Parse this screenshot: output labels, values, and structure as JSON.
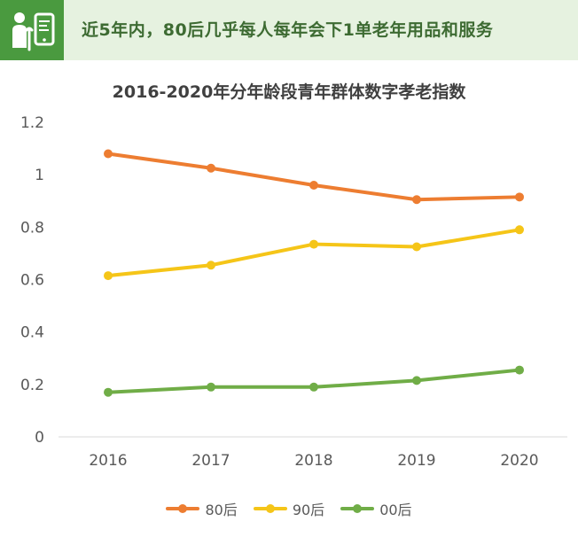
{
  "banner": {
    "text": "近5年内，80后几乎每人每年会下1单老年用品和服务",
    "icon": "elderly-care-icon",
    "background_color": "#e6f2e0",
    "icon_background_color": "#4a9a3f",
    "text_color": "#3d6b32"
  },
  "chart_data": {
    "type": "line",
    "title": "2016-2020年分年龄段青年群体数字孝老指数",
    "xlabel": "",
    "ylabel": "",
    "categories": [
      "2016",
      "2017",
      "2018",
      "2019",
      "2020"
    ],
    "y_ticks": [
      "0",
      "0.2",
      "0.4",
      "0.6",
      "0.8",
      "1",
      "1.2"
    ],
    "ylim": [
      0,
      1.2
    ],
    "grid": false,
    "legend_position": "bottom",
    "series": [
      {
        "name": "80后",
        "color": "#ed7d31",
        "values": [
          1.08,
          1.025,
          0.96,
          0.905,
          0.915
        ]
      },
      {
        "name": "90后",
        "color": "#f5c518",
        "values": [
          0.615,
          0.655,
          0.735,
          0.725,
          0.79
        ]
      },
      {
        "name": "00后",
        "color": "#70ad47",
        "values": [
          0.17,
          0.19,
          0.19,
          0.215,
          0.255
        ]
      }
    ]
  }
}
